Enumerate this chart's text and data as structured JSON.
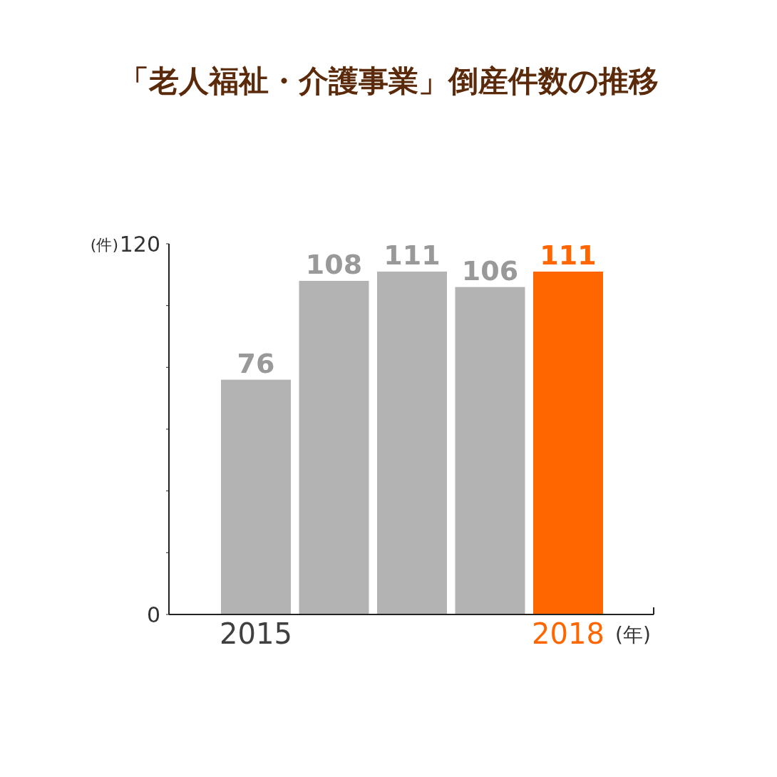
{
  "chart_data": {
    "type": "bar",
    "title": "「老人福祉・介護事業」倒産件数の推移",
    "ylabel": "(件)",
    "xlabel": "(年)",
    "categories": [
      "2015",
      null,
      null,
      null,
      "2018"
    ],
    "values": [
      76,
      108,
      111,
      106,
      111
    ],
    "colors": [
      "#b3b3b3",
      "#b3b3b3",
      "#b3b3b3",
      "#b3b3b3",
      "#ff6600"
    ],
    "ylim": [
      0,
      120
    ],
    "yticks": [
      0,
      {
        "value": 20,
        "label": null
      },
      {
        "value": 40,
        "label": null
      },
      {
        "value": 60,
        "label": null
      },
      {
        "value": 80,
        "label": null
      },
      {
        "value": 100,
        "label": null
      },
      120
    ],
    "data_labels": true
  }
}
